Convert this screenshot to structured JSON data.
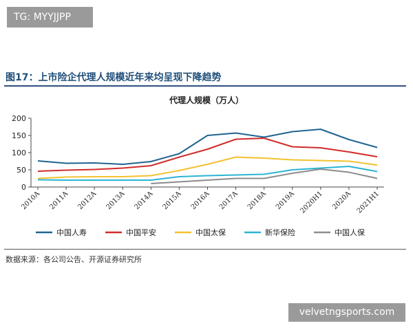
{
  "badge": {
    "text": "TG: MYYJJPP"
  },
  "figure": {
    "title": "图17：上市险企代理人规模近年来均呈现下降趋势",
    "source": "数据来源：各公司公告、开源证券研究所"
  },
  "watermark": {
    "text": "velvetngsports.com"
  },
  "chart_data": {
    "type": "line",
    "title": "代理人规模（万人）",
    "xlabel": "",
    "ylabel": "",
    "categories": [
      "2010A",
      "2011A",
      "2012A",
      "2013A",
      "2014A",
      "2015A",
      "2016A",
      "2017A",
      "2018A",
      "2019A",
      "2020H1",
      "2020A",
      "2021H1"
    ],
    "ylim": [
      0,
      200
    ],
    "yticks": [
      0,
      50,
      100,
      150,
      200
    ],
    "grid": false,
    "legend_position": "bottom",
    "series": [
      {
        "name": "中国人寿",
        "color": "#1f6391",
        "values": [
          76,
          69,
          70,
          66,
          74,
          97,
          150,
          157,
          145,
          161,
          168,
          138,
          115
        ]
      },
      {
        "name": "中国平安",
        "color": "#d12b2b",
        "values": [
          46,
          49,
          51,
          55,
          62,
          87,
          110,
          139,
          142,
          117,
          114,
          102,
          88
        ]
      },
      {
        "name": "中国太保",
        "color": "#f2c12e",
        "values": [
          25,
          29,
          30,
          30,
          33,
          48,
          66,
          87,
          84,
          79,
          77,
          75,
          64
        ]
      },
      {
        "name": "新华保险",
        "color": "#2ab4d4",
        "values": [
          21,
          20,
          20,
          20,
          20,
          30,
          33,
          35,
          37,
          50,
          55,
          60,
          45
        ]
      },
      {
        "name": "中国人保",
        "color": "#8c8c8c",
        "values": [
          null,
          null,
          null,
          null,
          10,
          15,
          20,
          25,
          25,
          40,
          52,
          43,
          25
        ]
      }
    ]
  }
}
